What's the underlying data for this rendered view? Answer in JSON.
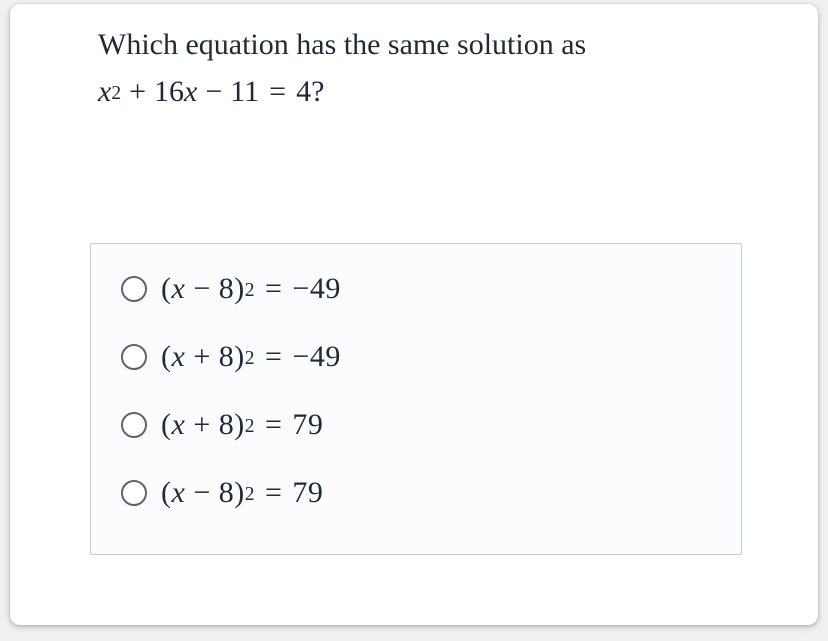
{
  "colors": {
    "text": "#1f2a36",
    "choices_bg": "#fbfcfd",
    "border": "#c7ccd1",
    "radio_border": "#5a646e",
    "card_bg": "#ffffff"
  },
  "typography": {
    "question_fontsize": 30,
    "choice_fontsize": 30
  },
  "question": {
    "line1": "Which equation has the same solution as",
    "equation": {
      "variable": "x",
      "exponent": "2",
      "plus": "+",
      "coeff_term": "16",
      "var2": "x",
      "minus": "−",
      "const1": "11",
      "eq": "=",
      "rhs": "4",
      "qmark": "?"
    }
  },
  "choices": [
    {
      "lparen": "(",
      "var": "x",
      "op": "−",
      "k": "8",
      "rparen": ")",
      "exp": "2",
      "eq": "=",
      "rhs": "−49"
    },
    {
      "lparen": "(",
      "var": "x",
      "op": "+",
      "k": "8",
      "rparen": ")",
      "exp": "2",
      "eq": "=",
      "rhs": "−49"
    },
    {
      "lparen": "(",
      "var": "x",
      "op": "+",
      "k": "8",
      "rparen": ")",
      "exp": "2",
      "eq": "=",
      "rhs": "79"
    },
    {
      "lparen": "(",
      "var": "x",
      "op": "−",
      "k": "8",
      "rparen": ")",
      "exp": "2",
      "eq": "=",
      "rhs": "79"
    }
  ]
}
